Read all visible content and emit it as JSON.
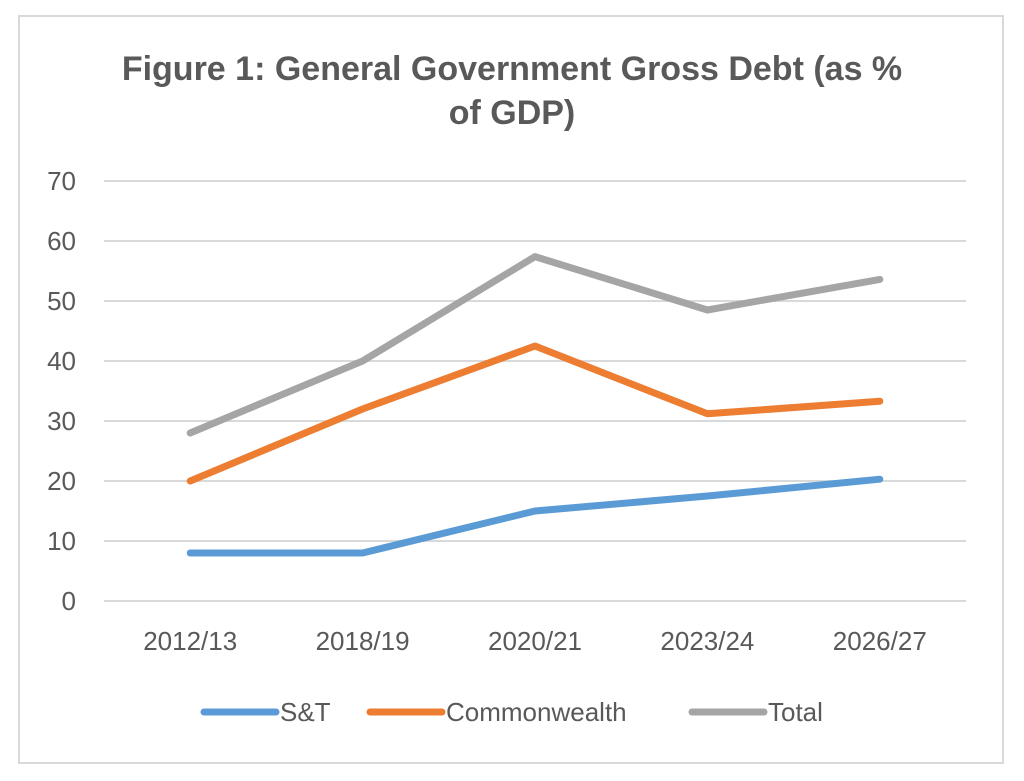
{
  "chart_data": {
    "type": "line",
    "title_lines": [
      "Figure 1: General Government Gross Debt (as %",
      "of GDP)"
    ],
    "categories": [
      "2012/13",
      "2018/19",
      "2020/21",
      "2023/24",
      "2026/27"
    ],
    "ylim": [
      0,
      70
    ],
    "yticks": [
      "0",
      "10",
      "20",
      "30",
      "40",
      "50",
      "60",
      "70"
    ],
    "grid": true,
    "legend_position": "bottom",
    "series": [
      {
        "name": "S&T",
        "color": "#5b9bd5",
        "values": [
          8,
          8,
          15,
          17.5,
          20.3
        ]
      },
      {
        "name": "Commonwealth",
        "color": "#ed7d31",
        "values": [
          20,
          32,
          42.5,
          31.2,
          33.3
        ]
      },
      {
        "name": "Total",
        "color": "#a5a5a5",
        "values": [
          28,
          40,
          57.4,
          48.5,
          53.6
        ]
      }
    ]
  }
}
